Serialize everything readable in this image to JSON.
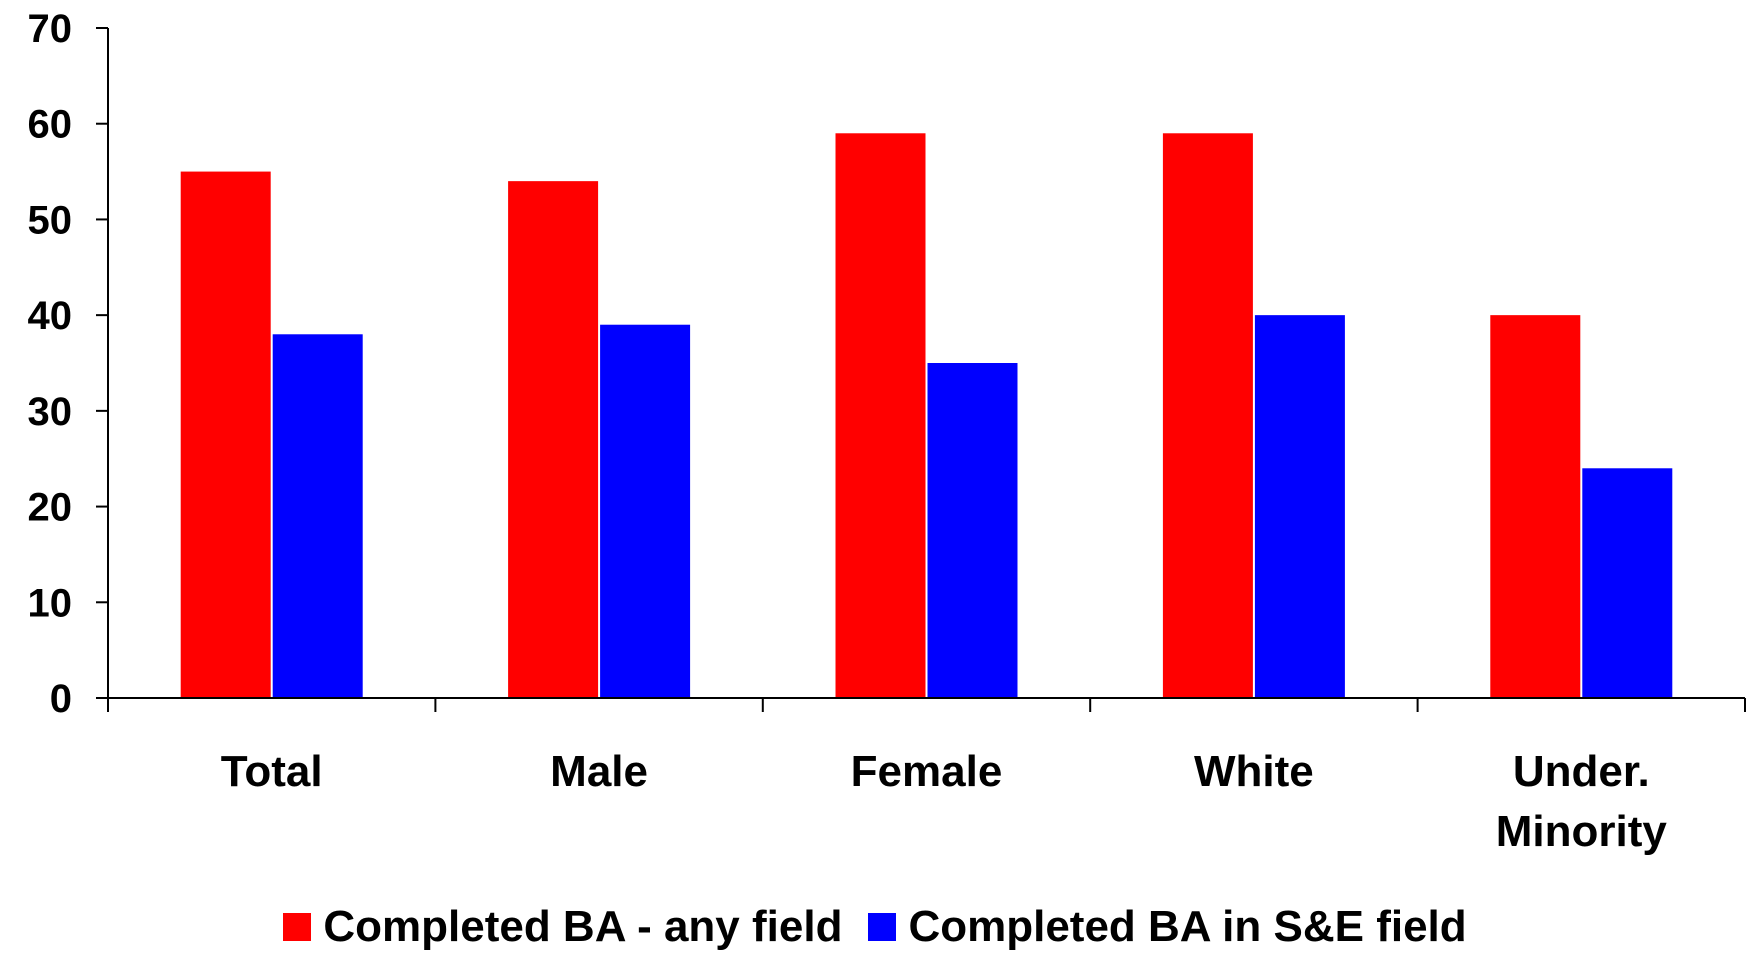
{
  "chart_data": {
    "type": "bar",
    "title": "",
    "xlabel": "",
    "ylabel": "",
    "ylim": [
      0,
      70
    ],
    "yticks": [
      0,
      10,
      20,
      30,
      40,
      50,
      60,
      70
    ],
    "categories": [
      "Total",
      "Male",
      "Female",
      "White",
      "Under.\nMinority"
    ],
    "series": [
      {
        "name": "Completed BA - any field",
        "color": "#ff0000",
        "values": [
          55,
          54,
          59,
          59,
          40
        ]
      },
      {
        "name": "Completed BA in S&E field",
        "color": "#0000ff",
        "values": [
          38,
          39,
          35,
          40,
          24
        ]
      }
    ],
    "grid": false,
    "legend": "bottom-center"
  }
}
